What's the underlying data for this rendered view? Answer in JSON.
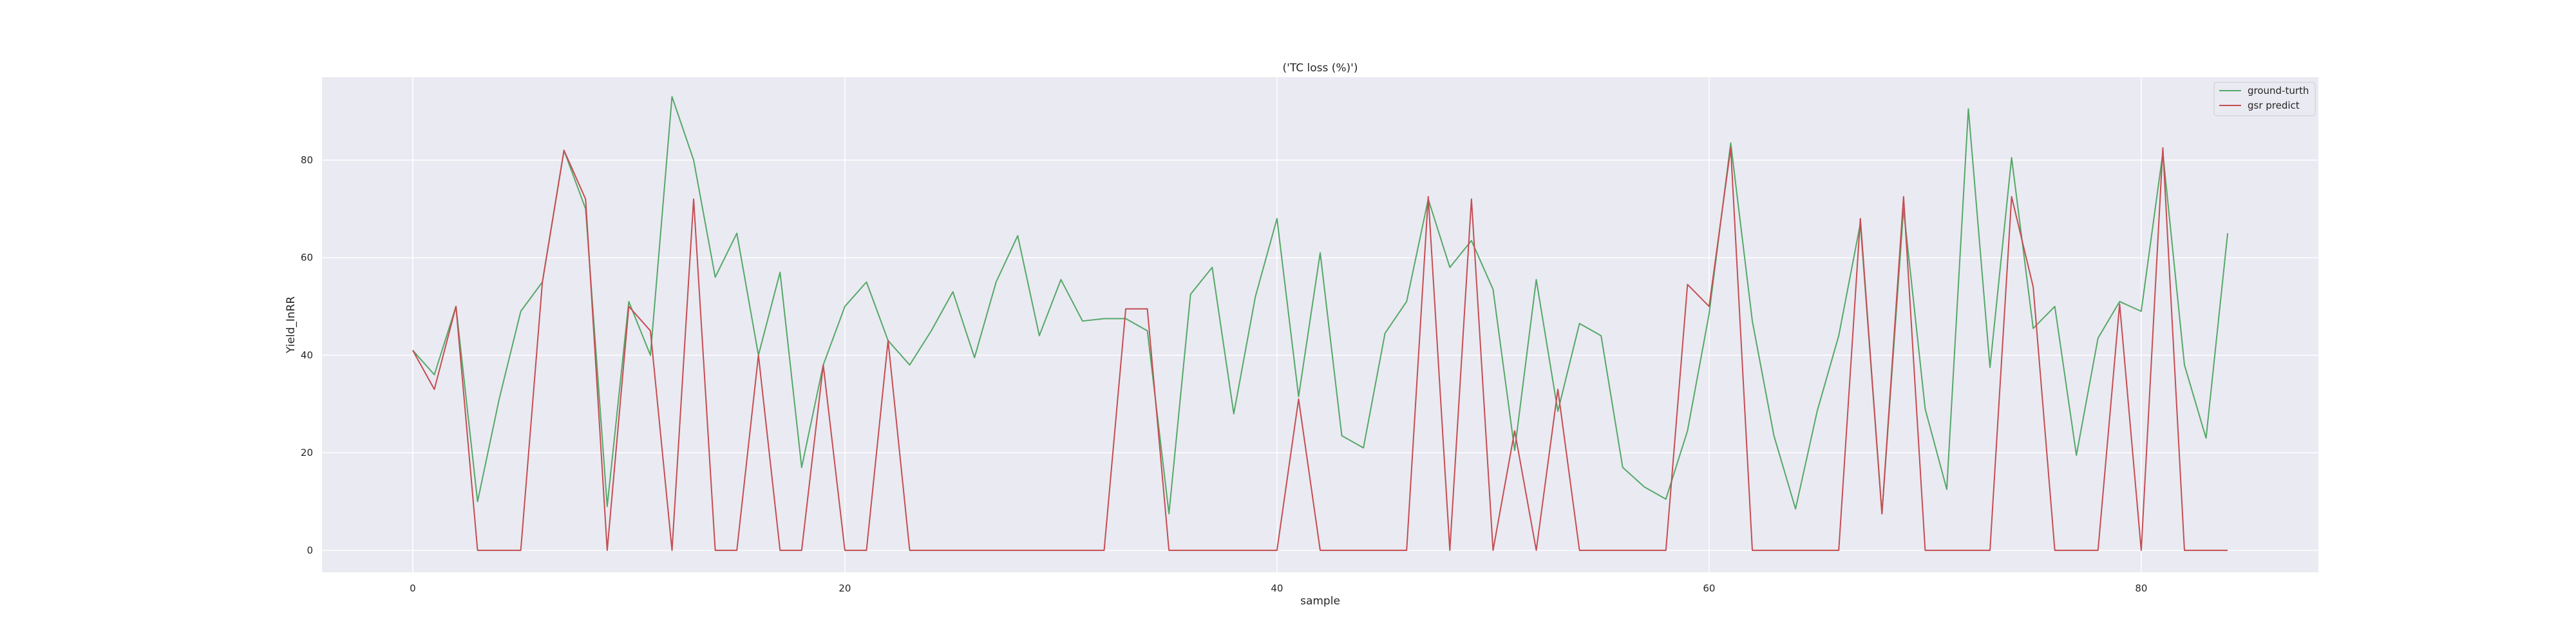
{
  "chart_data": {
    "type": "line",
    "title": "('TC loss (%)')",
    "xlabel": "sample",
    "ylabel": "Yield_InRR",
    "xlim": [
      -4.2,
      88.2
    ],
    "ylim": [
      -4.5,
      97
    ],
    "xticks": [
      0,
      20,
      40,
      60,
      80
    ],
    "yticks": [
      0,
      20,
      40,
      60,
      80
    ],
    "grid": true,
    "legend_position": "top-right",
    "background": "#eaeaf2",
    "series": [
      {
        "name": "ground-turth",
        "color": "#55a868",
        "values": [
          41,
          36,
          50,
          10,
          31,
          49,
          55,
          82,
          70,
          9,
          51,
          40,
          93,
          80,
          56,
          65,
          40,
          57,
          17,
          38,
          50,
          55,
          43,
          38,
          45,
          53,
          39.5,
          55,
          64.5,
          44,
          55.5,
          47,
          47.5,
          47.5,
          45,
          7.5,
          52.5,
          58,
          28,
          52,
          68,
          31.5,
          61,
          23.5,
          21,
          44.5,
          51,
          72,
          58,
          63.5,
          53.5,
          20.5,
          55.5,
          28.5,
          46.5,
          44,
          17,
          13,
          10.5,
          24.5,
          48.5,
          83.5,
          47,
          23.5,
          8.5,
          28.5,
          44,
          67,
          7.5,
          70,
          29,
          12.5,
          90.5,
          37.5,
          80.5,
          45.5,
          50,
          19.5,
          43.5,
          51,
          49,
          81.5,
          38,
          23,
          65
        ]
      },
      {
        "name": "gsr predict",
        "color": "#c44e52",
        "values": [
          41,
          33,
          50,
          0,
          0,
          0,
          55,
          82,
          72,
          0,
          50,
          45,
          0,
          72,
          0,
          0,
          40,
          0,
          0,
          38,
          0,
          0,
          43,
          0,
          0,
          0,
          0,
          0,
          0,
          0,
          0,
          0,
          0,
          49.5,
          49.5,
          0,
          0,
          0,
          0,
          0,
          0,
          31,
          0,
          0,
          0,
          0,
          0,
          72.5,
          0,
          72,
          0,
          24.5,
          0,
          33,
          0,
          0,
          0,
          0,
          0,
          54.5,
          50,
          82.5,
          0,
          0,
          0,
          0,
          0,
          68,
          7.5,
          72.5,
          0,
          0,
          0,
          0,
          72.5,
          54,
          0,
          0,
          0,
          50.5,
          0,
          82.5,
          0,
          0,
          0
        ]
      }
    ]
  }
}
